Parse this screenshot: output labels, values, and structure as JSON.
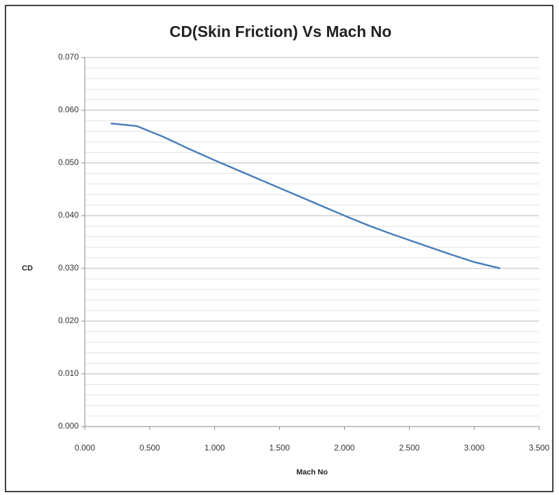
{
  "chart_data": {
    "type": "line",
    "title": "CD(Skin Friction) Vs Mach No",
    "x_label": "Mach No",
    "y_label": "CD",
    "x": [
      0.2,
      0.4,
      0.6,
      0.8,
      1.0,
      1.2,
      1.4,
      1.6,
      1.8,
      2.0,
      2.2,
      2.4,
      2.6,
      2.8,
      3.0,
      3.2
    ],
    "series": [
      {
        "name": "CD",
        "color": "#4a7ebb",
        "values": [
          0.0575,
          0.057,
          0.055,
          0.0527,
          0.0505,
          0.0484,
          0.0463,
          0.0442,
          0.0421,
          0.04,
          0.038,
          0.0362,
          0.0345,
          0.0328,
          0.0312,
          0.03
        ]
      }
    ],
    "xlim": [
      0,
      3.5
    ],
    "xticks": [
      {
        "value": 0,
        "label": "0.000"
      },
      {
        "value": 0.5,
        "label": "0.500"
      },
      {
        "value": 1,
        "label": "1.000"
      },
      {
        "value": 1.5,
        "label": "1.500"
      },
      {
        "value": 2,
        "label": "2.000"
      },
      {
        "value": 2.5,
        "label": "2.500"
      },
      {
        "value": 3,
        "label": "3.000"
      },
      {
        "value": 3.5,
        "label": "3.500"
      }
    ],
    "ylim": [
      0,
      0.07
    ],
    "yticks": [
      {
        "value": 0,
        "label": "0.000"
      },
      {
        "value": 0.01,
        "label": "0.010"
      },
      {
        "value": 0.02,
        "label": "0.020"
      },
      {
        "value": 0.03,
        "label": "0.030"
      },
      {
        "value": 0.04,
        "label": "0.040"
      },
      {
        "value": 0.05,
        "label": "0.050"
      },
      {
        "value": 0.06,
        "label": "0.060"
      },
      {
        "value": 0.07,
        "label": "0.070"
      }
    ],
    "y_minor_ticks": [
      0.002,
      0.004,
      0.006,
      0.008,
      0.012,
      0.014,
      0.016,
      0.018,
      0.022,
      0.024,
      0.026,
      0.028,
      0.032,
      0.034,
      0.036,
      0.038,
      0.042,
      0.044,
      0.046,
      0.048,
      0.052,
      0.054,
      0.056,
      0.058,
      0.062,
      0.064,
      0.066,
      0.068
    ],
    "grid": true
  }
}
